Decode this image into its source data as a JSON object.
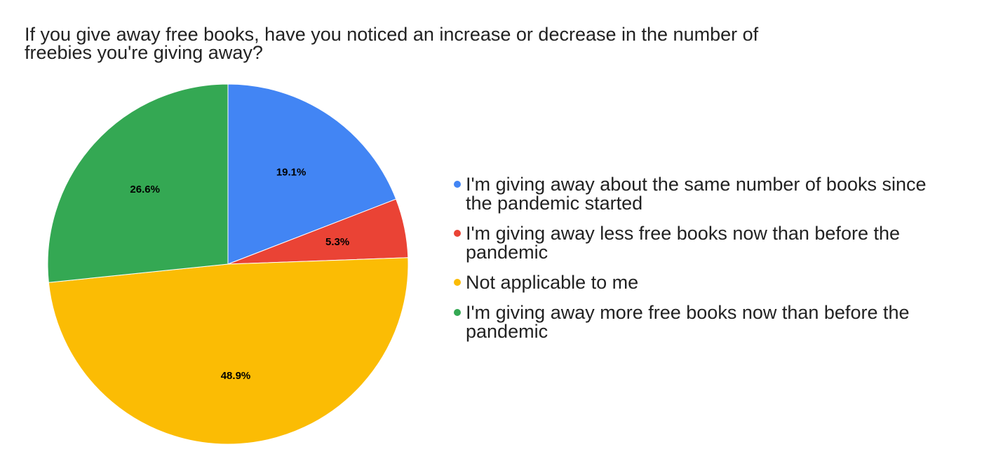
{
  "chart_data": {
    "type": "pie",
    "title": "If you give away free books, have you noticed an increase or decrease in the number of freebies you're giving away?",
    "title_lines": [
      "If you give away free books, have you noticed an increase or decrease in the number of",
      "freebies you're giving away?"
    ],
    "legend_position": "right",
    "slices": [
      {
        "label": "I'm giving away about the same number of books since the pandemic started",
        "legend_lines": [
          "I'm giving away about the same number of books since",
          "the pandemic started"
        ],
        "value": 19.1,
        "value_label": "19.1%",
        "color": "#4285F4"
      },
      {
        "label": "I'm giving away less free books now than before the pandemic",
        "legend_lines": [
          "I'm giving away less free books now than before the",
          "pandemic"
        ],
        "value": 5.3,
        "value_label": "5.3%",
        "color": "#EA4335"
      },
      {
        "label": "Not applicable to me",
        "legend_lines": [
          "Not applicable to me"
        ],
        "value": 48.9,
        "value_label": "48.9%",
        "color": "#FBBC04"
      },
      {
        "label": "I'm giving away more free books now than before the pandemic",
        "legend_lines": [
          "I'm giving away more free books now than before the",
          "pandemic"
        ],
        "value": 26.6,
        "value_label": "26.6%",
        "color": "#34A853"
      }
    ]
  }
}
